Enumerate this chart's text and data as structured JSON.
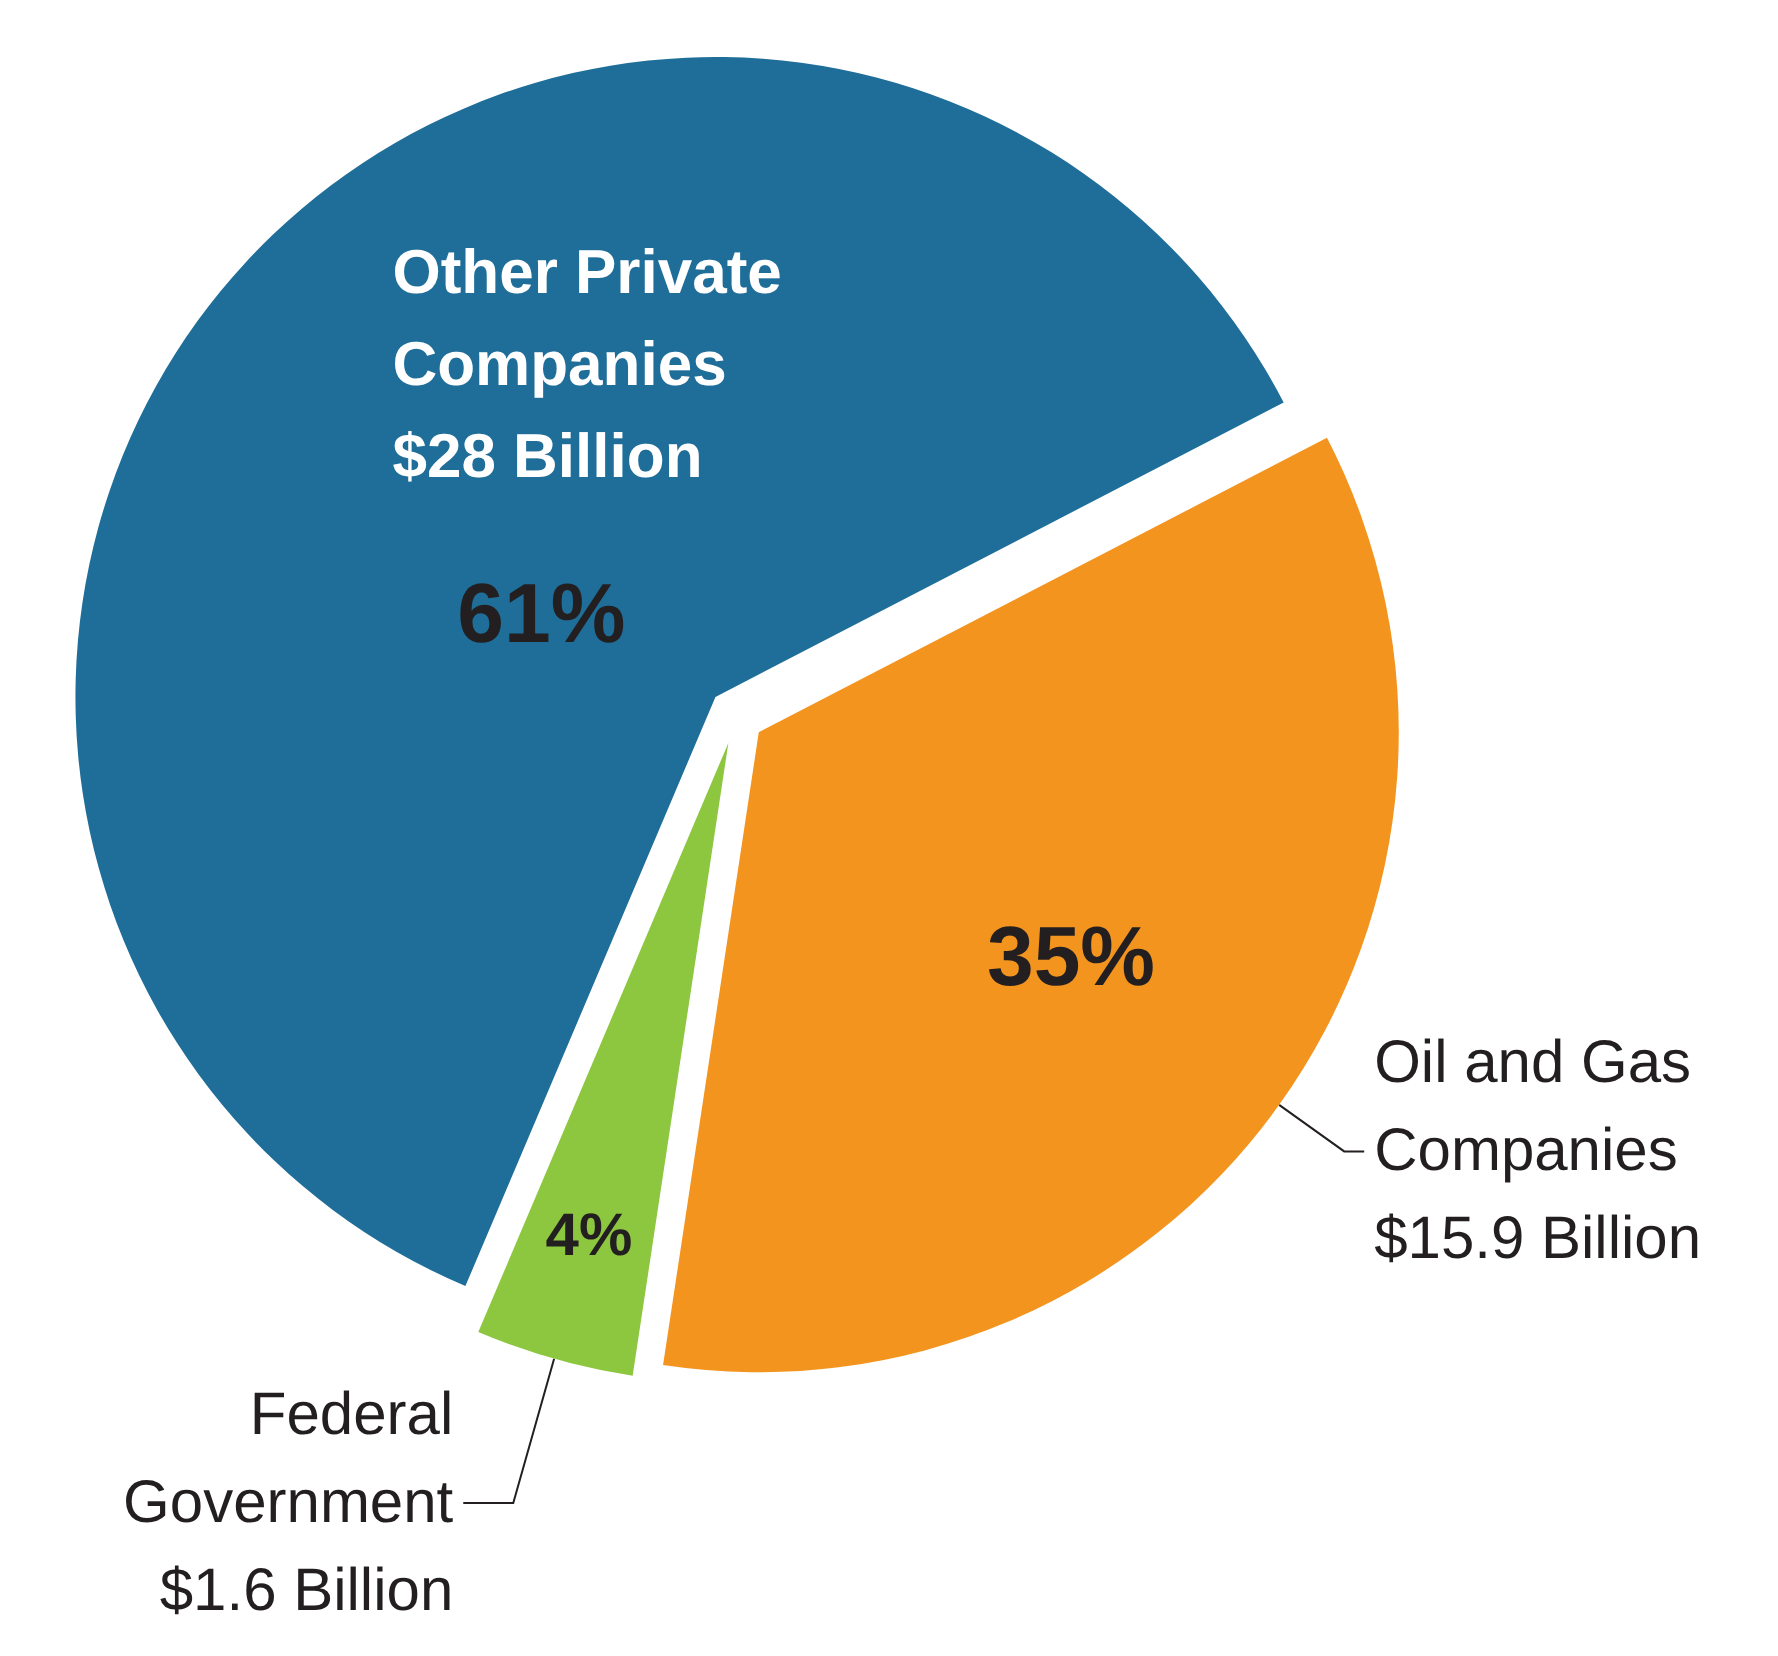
{
  "chart_data": {
    "type": "pie",
    "categories": [
      "Other Private\nCompanies\n$28 Billion",
      "Oil and Gas\nCompanies\n$15.9 Billion",
      "Federal\nGovernment\n$1.6 Billion"
    ],
    "values": [
      61,
      35,
      4
    ],
    "value_labels": [
      "61%",
      "35%",
      "4%"
    ],
    "colors": [
      "#1f6e99",
      "#f3941f",
      "#8dc63f"
    ],
    "legend": false
  }
}
